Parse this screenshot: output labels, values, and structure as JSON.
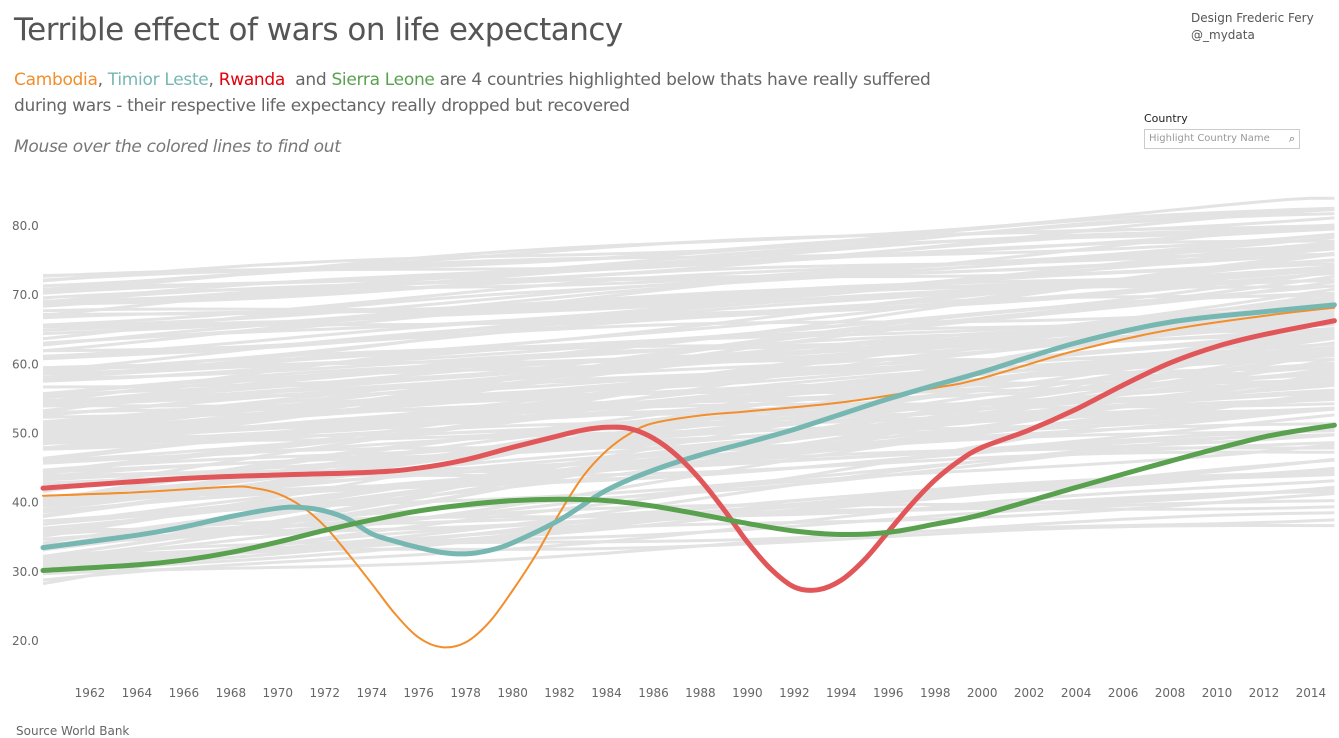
{
  "header": {
    "title": "Terrible effect of wars on life expectancy",
    "credit_line1": "Design Frederic Fery",
    "credit_line2": "@_mydata",
    "subtitle": {
      "c1": "Cambodia",
      "sep1": ", ",
      "c2": "Timior Leste",
      "sep2": ", ",
      "c3": "Rwanda",
      "and": "  and ",
      "c4": "Sierra Leone",
      "rest": " are 4 countries highlighted below thats have really suffered during wars - their respective life expectancy really dropped but recovered"
    },
    "hint": "Mouse over the colored lines to find out"
  },
  "filter": {
    "label": "Country",
    "placeholder": "Highlight Country Name",
    "icon": "search-icon"
  },
  "footer": {
    "source": "Source World Bank"
  },
  "chart_data": {
    "type": "line",
    "xlim": [
      1960,
      2015
    ],
    "ylim": [
      15,
      85
    ],
    "grid": false,
    "yticks": [
      "20.0",
      "30.0",
      "40.0",
      "50.0",
      "60.0",
      "70.0",
      "80.0"
    ],
    "xticks": [
      "1962",
      "1964",
      "1966",
      "1968",
      "1970",
      "1972",
      "1974",
      "1976",
      "1978",
      "1980",
      "1982",
      "1984",
      "1986",
      "1988",
      "1990",
      "1992",
      "1994",
      "1996",
      "1998",
      "2000",
      "2002",
      "2004",
      "2006",
      "2008",
      "2010",
      "2012",
      "2014"
    ],
    "background_color": "#e3e3e3",
    "series": [
      {
        "name": "Cambodia",
        "color": "#f28e2b",
        "width": 2,
        "points": [
          [
            1960,
            41
          ],
          [
            1964,
            41.5
          ],
          [
            1968,
            42.3
          ],
          [
            1969,
            42.1
          ],
          [
            1970,
            41.3
          ],
          [
            1971,
            39.5
          ],
          [
            1972,
            36.6
          ],
          [
            1973,
            32.6
          ],
          [
            1974,
            28.3
          ],
          [
            1975,
            23.9
          ],
          [
            1976,
            20.5
          ],
          [
            1977,
            19.1
          ],
          [
            1978,
            19.8
          ],
          [
            1979,
            22.7
          ],
          [
            1980,
            27.3
          ],
          [
            1981,
            32.5
          ],
          [
            1982,
            38.5
          ],
          [
            1983,
            43.8
          ],
          [
            1984,
            47.5
          ],
          [
            1985,
            50
          ],
          [
            1986,
            51.5
          ],
          [
            1988,
            52.6
          ],
          [
            1990,
            53.2
          ],
          [
            1994,
            54.5
          ],
          [
            1998,
            56.6
          ],
          [
            2000,
            58
          ],
          [
            2004,
            62
          ],
          [
            2008,
            65
          ],
          [
            2012,
            67
          ],
          [
            2015,
            68.2
          ]
        ]
      },
      {
        "name": "Timior Leste",
        "color": "#76b7b2",
        "width": 5,
        "points": [
          [
            1960,
            33.5
          ],
          [
            1964,
            35.3
          ],
          [
            1966,
            36.5
          ],
          [
            1968,
            38
          ],
          [
            1970,
            39.2
          ],
          [
            1971,
            39.3
          ],
          [
            1972,
            38.8
          ],
          [
            1973,
            37.6
          ],
          [
            1974,
            35.5
          ],
          [
            1975,
            34.4
          ],
          [
            1976,
            33.5
          ],
          [
            1977,
            32.8
          ],
          [
            1978,
            32.6
          ],
          [
            1979,
            33.1
          ],
          [
            1980,
            34.2
          ],
          [
            1982,
            37.5
          ],
          [
            1984,
            41.8
          ],
          [
            1986,
            44.7
          ],
          [
            1988,
            46.9
          ],
          [
            1990,
            48.7
          ],
          [
            1992,
            50.6
          ],
          [
            1994,
            52.8
          ],
          [
            1996,
            55
          ],
          [
            1998,
            57
          ],
          [
            2000,
            58.9
          ],
          [
            2004,
            63.1
          ],
          [
            2008,
            66.1
          ],
          [
            2012,
            67.6
          ],
          [
            2015,
            68.6
          ]
        ]
      },
      {
        "name": "Rwanda",
        "color": "#e15759",
        "width": 5,
        "points": [
          [
            1960,
            42.1
          ],
          [
            1966,
            43.5
          ],
          [
            1970,
            44
          ],
          [
            1974,
            44.4
          ],
          [
            1976,
            45
          ],
          [
            1978,
            46.2
          ],
          [
            1980,
            48
          ],
          [
            1982,
            49.7
          ],
          [
            1983,
            50.5
          ],
          [
            1984,
            50.9
          ],
          [
            1985,
            50.7
          ],
          [
            1986,
            49.3
          ],
          [
            1987,
            46.8
          ],
          [
            1988,
            43.3
          ],
          [
            1989,
            39
          ],
          [
            1990,
            34.3
          ],
          [
            1991,
            30.4
          ],
          [
            1992,
            27.8
          ],
          [
            1993,
            27.4
          ],
          [
            1994,
            28.8
          ],
          [
            1995,
            31.8
          ],
          [
            1996,
            35.8
          ],
          [
            1997,
            39.8
          ],
          [
            1998,
            43.3
          ],
          [
            1999,
            46
          ],
          [
            2000,
            48
          ],
          [
            2002,
            50.5
          ],
          [
            2004,
            53.5
          ],
          [
            2006,
            57
          ],
          [
            2008,
            60.2
          ],
          [
            2010,
            62.6
          ],
          [
            2012,
            64.3
          ],
          [
            2015,
            66.3
          ]
        ]
      },
      {
        "name": "Sierra Leone",
        "color": "#59a14f",
        "width": 5,
        "points": [
          [
            1960,
            30.2
          ],
          [
            1964,
            31
          ],
          [
            1966,
            31.7
          ],
          [
            1968,
            32.8
          ],
          [
            1970,
            34.3
          ],
          [
            1972,
            36
          ],
          [
            1974,
            37.5
          ],
          [
            1976,
            38.8
          ],
          [
            1978,
            39.7
          ],
          [
            1980,
            40.3
          ],
          [
            1982,
            40.5
          ],
          [
            1984,
            40.3
          ],
          [
            1986,
            39.5
          ],
          [
            1988,
            38.3
          ],
          [
            1990,
            37
          ],
          [
            1992,
            35.9
          ],
          [
            1994,
            35.4
          ],
          [
            1996,
            35.7
          ],
          [
            1998,
            36.9
          ],
          [
            2000,
            38.3
          ],
          [
            2004,
            42.2
          ],
          [
            2008,
            46
          ],
          [
            2012,
            49.5
          ],
          [
            2015,
            51.2
          ]
        ]
      }
    ]
  }
}
